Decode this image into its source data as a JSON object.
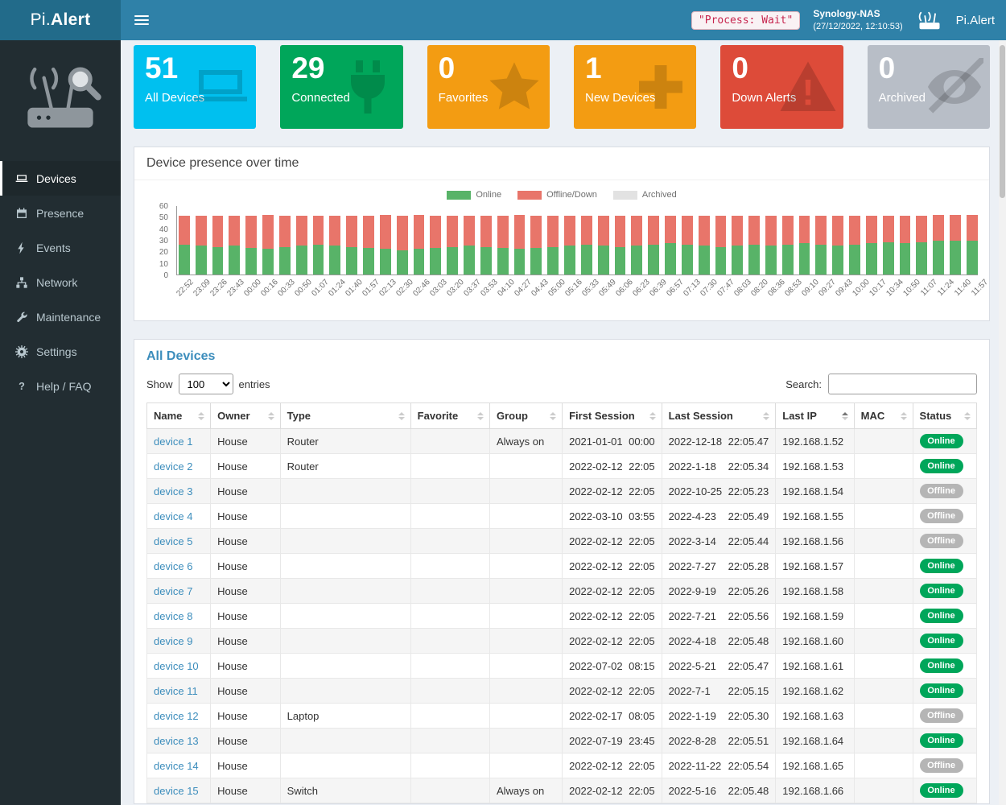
{
  "header": {
    "logo_prefix": "Pi.",
    "logo_suffix": "Alert",
    "process_status": "\"Process: Wait\"",
    "host": "Synology-NAS",
    "timestamp": "(27/12/2022, 12:10:53)",
    "app_name": "Pi.Alert"
  },
  "sidebar": {
    "items": [
      {
        "id": "devices",
        "label": "Devices",
        "icon": "devices-icon",
        "active": true
      },
      {
        "id": "presence",
        "label": "Presence",
        "icon": "presence-icon",
        "active": false
      },
      {
        "id": "events",
        "label": "Events",
        "icon": "events-icon",
        "active": false
      },
      {
        "id": "network",
        "label": "Network",
        "icon": "network-icon",
        "active": false
      },
      {
        "id": "maintenance",
        "label": "Maintenance",
        "icon": "maintenance-icon",
        "active": false
      },
      {
        "id": "settings",
        "label": "Settings",
        "icon": "settings-icon",
        "active": false
      },
      {
        "id": "help",
        "label": "Help / FAQ",
        "icon": "help-icon",
        "active": false
      }
    ]
  },
  "page": {
    "title": "Devices"
  },
  "cards": [
    {
      "id": "all-devices",
      "value": "51",
      "label": "All Devices",
      "color": "#00c0ef",
      "icon": "laptop-icon"
    },
    {
      "id": "connected",
      "value": "29",
      "label": "Connected",
      "color": "#00a65a",
      "icon": "plug-icon"
    },
    {
      "id": "favorites",
      "value": "0",
      "label": "Favorites",
      "color": "#f39c12",
      "icon": "star-icon"
    },
    {
      "id": "new-devices",
      "value": "1",
      "label": "New Devices",
      "color": "#f39c12",
      "icon": "plus-icon"
    },
    {
      "id": "down-alerts",
      "value": "0",
      "label": "Down Alerts",
      "color": "#dd4b39",
      "icon": "warning-icon"
    },
    {
      "id": "archived",
      "value": "0",
      "label": "Archived",
      "color": "#b8bec7",
      "icon": "eye-slash-icon"
    }
  ],
  "presence_panel": {
    "title": "Device presence over time"
  },
  "chart_data": {
    "type": "bar",
    "stacked": true,
    "title": "Device presence over time",
    "ylim": [
      0,
      60
    ],
    "yticks": [
      0,
      10,
      20,
      30,
      40,
      50,
      60
    ],
    "legend_position": "top",
    "categories": [
      "22:52",
      "23:09",
      "23:26",
      "23:43",
      "00:00",
      "00:16",
      "00:33",
      "00:50",
      "01:07",
      "01:24",
      "01:40",
      "01:57",
      "02:13",
      "02:30",
      "02:46",
      "03:03",
      "03:20",
      "03:37",
      "03:53",
      "04:10",
      "04:27",
      "04:43",
      "05:00",
      "05:16",
      "05:33",
      "05:49",
      "06:06",
      "06:23",
      "06:39",
      "06:57",
      "07:13",
      "07:30",
      "07:47",
      "08:03",
      "08:20",
      "08:36",
      "08:53",
      "09:10",
      "09:27",
      "09:43",
      "10:00",
      "10:17",
      "10:34",
      "10:50",
      "11:07",
      "11:24",
      "11:40",
      "11:57"
    ],
    "series": [
      {
        "name": "Online",
        "color": "#58b368",
        "values": [
          26,
          25,
          24,
          25,
          23,
          22,
          24,
          25,
          26,
          25,
          24,
          23,
          22,
          21,
          22,
          23,
          24,
          25,
          24,
          23,
          22,
          23,
          24,
          25,
          26,
          25,
          24,
          25,
          26,
          27,
          26,
          25,
          24,
          25,
          26,
          25,
          26,
          27,
          26,
          25,
          26,
          27,
          28,
          27,
          28,
          29,
          29,
          29
        ]
      },
      {
        "name": "Offline/Down",
        "color": "#e8756a",
        "values": [
          25,
          26,
          27,
          26,
          28,
          29,
          27,
          26,
          25,
          26,
          27,
          28,
          29,
          30,
          29,
          28,
          27,
          26,
          27,
          28,
          29,
          28,
          27,
          26,
          25,
          26,
          27,
          26,
          25,
          24,
          25,
          26,
          27,
          26,
          25,
          26,
          25,
          24,
          25,
          26,
          25,
          24,
          23,
          24,
          23,
          22,
          22,
          22
        ]
      },
      {
        "name": "Archived",
        "color": "#e2e2e2",
        "values": [
          0,
          0,
          0,
          0,
          0,
          0,
          0,
          0,
          0,
          0,
          0,
          0,
          0,
          0,
          0,
          0,
          0,
          0,
          0,
          0,
          0,
          0,
          0,
          0,
          0,
          0,
          0,
          0,
          0,
          0,
          0,
          0,
          0,
          0,
          0,
          0,
          0,
          0,
          0,
          0,
          0,
          0,
          0,
          0,
          0,
          0,
          0,
          0
        ]
      }
    ]
  },
  "devices_panel": {
    "title": "All Devices",
    "show_label": "Show",
    "page_length": "100",
    "entries_label": "entries",
    "search_label": "Search:",
    "search_value": ""
  },
  "table": {
    "columns": [
      "Name",
      "Owner",
      "Type",
      "Favorite",
      "Group",
      "First Session",
      "Last Session",
      "Last IP",
      "MAC",
      "Status"
    ],
    "sorted_column": "Last IP",
    "rows": [
      {
        "name": "device 1",
        "owner": "House",
        "type": "Router",
        "favorite": "",
        "group": "Always on",
        "first_session": [
          "2021-01-01",
          "00:00"
        ],
        "last_session": [
          "2022-12-18",
          "22:05.47"
        ],
        "last_ip": "192.168.1.52",
        "mac": "",
        "status": "Online"
      },
      {
        "name": "device 2",
        "owner": "House",
        "type": "Router",
        "favorite": "",
        "group": "",
        "first_session": [
          "2022-02-12",
          "22:05"
        ],
        "last_session": [
          "2022-1-18",
          "22:05.34"
        ],
        "last_ip": "192.168.1.53",
        "mac": "",
        "status": "Online"
      },
      {
        "name": "device 3",
        "owner": "House",
        "type": "",
        "favorite": "",
        "group": "",
        "first_session": [
          "2022-02-12",
          "22:05"
        ],
        "last_session": [
          "2022-10-25",
          "22:05.23"
        ],
        "last_ip": "192.168.1.54",
        "mac": "",
        "status": "Offline"
      },
      {
        "name": "device 4",
        "owner": "House",
        "type": "",
        "favorite": "",
        "group": "",
        "first_session": [
          "2022-03-10",
          "03:55"
        ],
        "last_session": [
          "2022-4-23",
          "22:05.49"
        ],
        "last_ip": "192.168.1.55",
        "mac": "",
        "status": "Offline"
      },
      {
        "name": "device 5",
        "owner": "House",
        "type": "",
        "favorite": "",
        "group": "",
        "first_session": [
          "2022-02-12",
          "22:05"
        ],
        "last_session": [
          "2022-3-14",
          "22:05.44"
        ],
        "last_ip": "192.168.1.56",
        "mac": "",
        "status": "Offline"
      },
      {
        "name": "device 6",
        "owner": "House",
        "type": "",
        "favorite": "",
        "group": "",
        "first_session": [
          "2022-02-12",
          "22:05"
        ],
        "last_session": [
          "2022-7-27",
          "22:05.28"
        ],
        "last_ip": "192.168.1.57",
        "mac": "",
        "status": "Online"
      },
      {
        "name": "device 7",
        "owner": "House",
        "type": "",
        "favorite": "",
        "group": "",
        "first_session": [
          "2022-02-12",
          "22:05"
        ],
        "last_session": [
          "2022-9-19",
          "22:05.26"
        ],
        "last_ip": "192.168.1.58",
        "mac": "",
        "status": "Online"
      },
      {
        "name": "device 8",
        "owner": "House",
        "type": "",
        "favorite": "",
        "group": "",
        "first_session": [
          "2022-02-12",
          "22:05"
        ],
        "last_session": [
          "2022-7-21",
          "22:05.56"
        ],
        "last_ip": "192.168.1.59",
        "mac": "",
        "status": "Online"
      },
      {
        "name": "device 9",
        "owner": "House",
        "type": "",
        "favorite": "",
        "group": "",
        "first_session": [
          "2022-02-12",
          "22:05"
        ],
        "last_session": [
          "2022-4-18",
          "22:05.48"
        ],
        "last_ip": "192.168.1.60",
        "mac": "",
        "status": "Online"
      },
      {
        "name": "device 10",
        "owner": "House",
        "type": "",
        "favorite": "",
        "group": "",
        "first_session": [
          "2022-07-02",
          "08:15"
        ],
        "last_session": [
          "2022-5-21",
          "22:05.47"
        ],
        "last_ip": "192.168.1.61",
        "mac": "",
        "status": "Online"
      },
      {
        "name": "device 11",
        "owner": "House",
        "type": "",
        "favorite": "",
        "group": "",
        "first_session": [
          "2022-02-12",
          "22:05"
        ],
        "last_session": [
          "2022-7-1",
          "22:05.15"
        ],
        "last_ip": "192.168.1.62",
        "mac": "",
        "status": "Online"
      },
      {
        "name": "device 12",
        "owner": "House",
        "type": "Laptop",
        "favorite": "",
        "group": "",
        "first_session": [
          "2022-02-17",
          "08:05"
        ],
        "last_session": [
          "2022-1-19",
          "22:05.30"
        ],
        "last_ip": "192.168.1.63",
        "mac": "",
        "status": "Offline"
      },
      {
        "name": "device 13",
        "owner": "House",
        "type": "",
        "favorite": "",
        "group": "",
        "first_session": [
          "2022-07-19",
          "23:45"
        ],
        "last_session": [
          "2022-8-28",
          "22:05.51"
        ],
        "last_ip": "192.168.1.64",
        "mac": "",
        "status": "Online"
      },
      {
        "name": "device 14",
        "owner": "House",
        "type": "",
        "favorite": "",
        "group": "",
        "first_session": [
          "2022-02-12",
          "22:05"
        ],
        "last_session": [
          "2022-11-22",
          "22:05.54"
        ],
        "last_ip": "192.168.1.65",
        "mac": "",
        "status": "Offline"
      },
      {
        "name": "device 15",
        "owner": "House",
        "type": "Switch",
        "favorite": "",
        "group": "Always on",
        "first_session": [
          "2022-02-12",
          "22:05"
        ],
        "last_session": [
          "2022-5-16",
          "22:05.48"
        ],
        "last_ip": "192.168.1.66",
        "mac": "",
        "status": "Online"
      }
    ]
  }
}
